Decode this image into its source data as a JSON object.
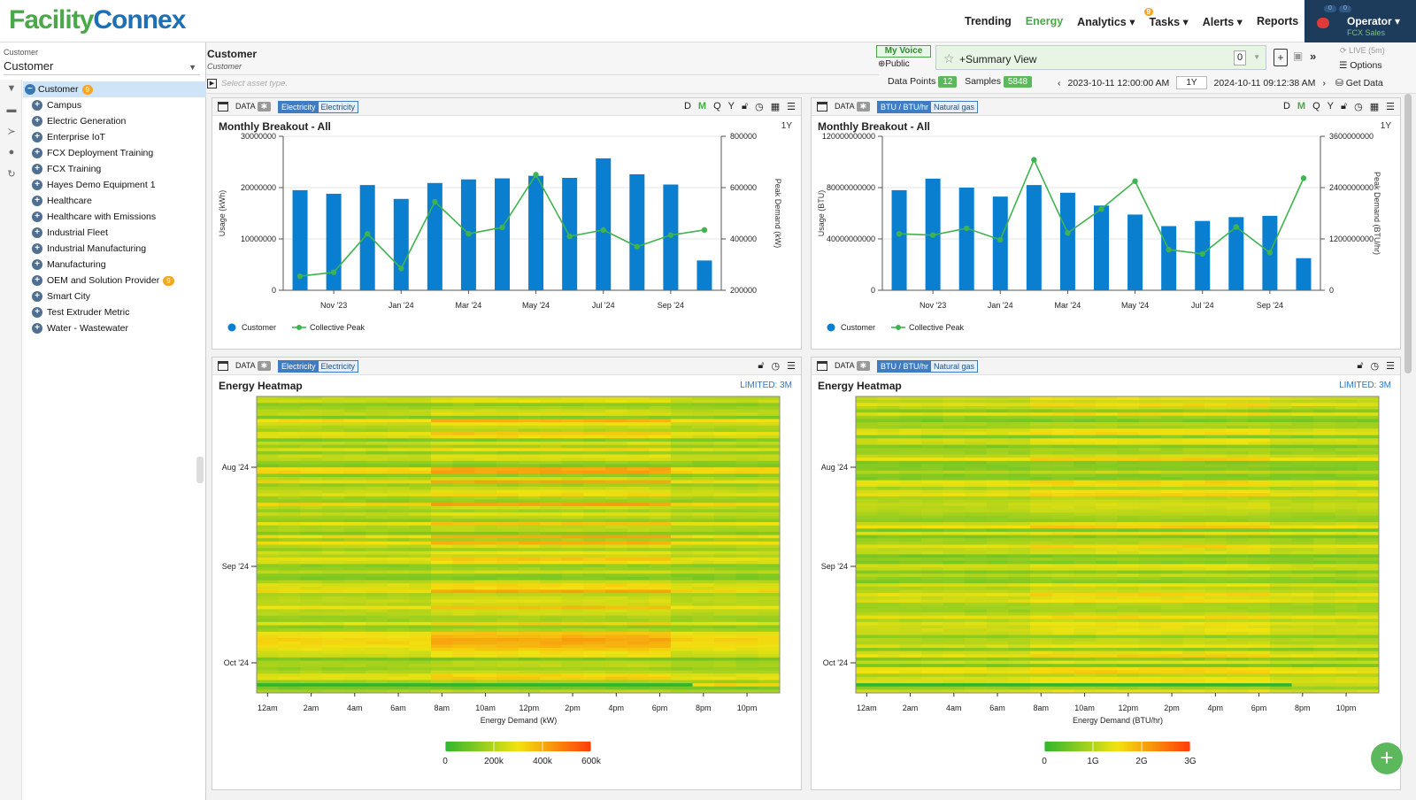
{
  "app": {
    "logo_part1": "Facility",
    "logo_part2": "Connex",
    "nav": [
      {
        "label": "Trending",
        "active": false
      },
      {
        "label": "Energy",
        "active": true
      },
      {
        "label": "Analytics ▾",
        "active": false
      },
      {
        "label": "Tasks ▾",
        "active": false,
        "badge": "9"
      },
      {
        "label": "Alerts ▾",
        "active": false
      },
      {
        "label": "Reports",
        "active": false
      }
    ],
    "user": {
      "name": "Operator ▾",
      "role": "FCX Sales",
      "mini_badges": [
        "0",
        "0"
      ]
    }
  },
  "sidebar": {
    "label": "Customer",
    "selected": "Customer",
    "tree": [
      {
        "label": "Customer",
        "root": true,
        "badge": "9"
      },
      {
        "label": "Campus"
      },
      {
        "label": "Electric Generation"
      },
      {
        "label": "Enterprise IoT"
      },
      {
        "label": "FCX Deployment Training"
      },
      {
        "label": "FCX Training"
      },
      {
        "label": "Hayes Demo Equipment 1"
      },
      {
        "label": "Healthcare"
      },
      {
        "label": "Healthcare with Emissions"
      },
      {
        "label": "Industrial Fleet"
      },
      {
        "label": "Industrial Manufacturing"
      },
      {
        "label": "Manufacturing"
      },
      {
        "label": "OEM and Solution Provider",
        "badge": "9"
      },
      {
        "label": "Smart City"
      },
      {
        "label": "Test Extruder Metric"
      },
      {
        "label": "Water - Wastewater"
      }
    ]
  },
  "workspace": {
    "title": "Customer",
    "subtitle": "Customer",
    "asset_placeholder": "Select asset type.",
    "my_voice": "My Voice",
    "public": "Public",
    "view_name": "+Summary View",
    "view_count": "0",
    "live": "LIVE (5m)",
    "options": "Options",
    "get_data": "Get Data",
    "data_points_label": "Data Points",
    "data_points": "12",
    "samples_label": "Samples",
    "samples": "5848",
    "start": "2023-10-11 12:00:00 AM",
    "range": "1Y",
    "end": "2024-10-11 09:12:38 AM"
  },
  "panels": {
    "data_label": "DATA",
    "bar_icons": [
      "D",
      "M",
      "Q",
      "Y"
    ],
    "elec_tag": [
      "Electricity",
      "Electricity"
    ],
    "gas_tag": [
      "BTU / BTU/hr",
      "Natural gas"
    ],
    "breakout_title": "Monthly Breakout - All",
    "breakout_range": "1Y",
    "heatmap_title": "Energy Heatmap",
    "heatmap_limited": "LIMITED: 3M",
    "legend_series1": "Customer",
    "legend_series2": "Collective Peak"
  },
  "chart_data": [
    {
      "type": "bar",
      "title": "Monthly Breakout - All",
      "categories": [
        "Oct '23",
        "Nov '23",
        "Dec '23",
        "Jan '24",
        "Feb '24",
        "Mar '24",
        "Apr '24",
        "May '24",
        "Jun '24",
        "Jul '24",
        "Aug '24",
        "Sep '24",
        "Oct '24"
      ],
      "xticks": [
        "Nov '23",
        "Jan '24",
        "Mar '24",
        "May '24",
        "Jul '24",
        "Sep '24"
      ],
      "ylabel": "Usage (kWh)",
      "y2label": "Peak Demand (kW)",
      "ylim": [
        0,
        30000000
      ],
      "yticks": [
        "0",
        "10000000",
        "20000000",
        "30000000"
      ],
      "y2lim": [
        200000,
        800000
      ],
      "y2ticks": [
        "200000",
        "400000",
        "600000",
        "800000"
      ],
      "series": [
        {
          "name": "Customer",
          "type": "bar",
          "color": "#0a7ecf",
          "values": [
            19500000,
            18800000,
            20500000,
            17800000,
            20900000,
            21600000,
            21800000,
            22300000,
            21900000,
            25700000,
            22600000,
            20600000,
            5800000
          ]
        },
        {
          "name": "Collective Peak",
          "type": "line",
          "color": "#3fb34f",
          "values": [
            255000,
            270000,
            420000,
            285000,
            545000,
            420000,
            445000,
            650000,
            410000,
            435000,
            370000,
            415000,
            435000
          ]
        }
      ],
      "legend": "bottom-left"
    },
    {
      "type": "bar",
      "title": "Monthly Breakout - All",
      "categories": [
        "Oct '23",
        "Nov '23",
        "Dec '23",
        "Jan '24",
        "Feb '24",
        "Mar '24",
        "Apr '24",
        "May '24",
        "Jun '24",
        "Jul '24",
        "Aug '24",
        "Sep '24",
        "Oct '24"
      ],
      "xticks": [
        "Nov '23",
        "Jan '24",
        "Mar '24",
        "May '24",
        "Jul '24",
        "Sep '24"
      ],
      "ylabel": "Usage (BTU)",
      "y2label": "Peak Demand (BTU/hr)",
      "ylim": [
        0,
        120000000000
      ],
      "yticks": [
        "0",
        "40000000000",
        "80000000000",
        "120000000000"
      ],
      "y2lim": [
        0,
        3600000000
      ],
      "y2ticks": [
        "0",
        "1200000000",
        "2400000000",
        "3600000000"
      ],
      "series": [
        {
          "name": "Customer",
          "type": "bar",
          "color": "#0a7ecf",
          "values": [
            78000000000,
            87000000000,
            80000000000,
            73000000000,
            82000000000,
            76000000000,
            66000000000,
            59000000000,
            50000000000,
            54000000000,
            57000000000,
            58000000000,
            25000000000
          ]
        },
        {
          "name": "Collective Peak",
          "type": "line",
          "color": "#3fb34f",
          "values": [
            1320000000,
            1290000000,
            1450000000,
            1180000000,
            3050000000,
            1340000000,
            1900000000,
            2550000000,
            950000000,
            850000000,
            1480000000,
            880000000,
            2620000000
          ]
        }
      ],
      "legend": "bottom-left"
    },
    {
      "type": "heatmap",
      "title": "Energy Heatmap",
      "xlabel": "Energy Demand (kW)",
      "xticks": [
        "12am",
        "2am",
        "4am",
        "6am",
        "8am",
        "10am",
        "12pm",
        "2pm",
        "4pm",
        "6pm",
        "8pm",
        "10pm"
      ],
      "yticks": [
        "Aug '24",
        "Sep '24",
        "Oct '24"
      ],
      "colorbar_ticks": [
        "0",
        "200k",
        "400k",
        "600k"
      ],
      "colorbar_max": 600000,
      "colors": [
        "#2fb62f",
        "#f2e310",
        "#ff3b0a"
      ]
    },
    {
      "type": "heatmap",
      "title": "Energy Heatmap",
      "xlabel": "Energy Demand (BTU/hr)",
      "xticks": [
        "12am",
        "2am",
        "4am",
        "6am",
        "8am",
        "10am",
        "12pm",
        "2pm",
        "4pm",
        "6pm",
        "8pm",
        "10pm"
      ],
      "yticks": [
        "Aug '24",
        "Sep '24",
        "Oct '24"
      ],
      "colorbar_ticks": [
        "0",
        "1G",
        "2G",
        "3G"
      ],
      "colorbar_max": 3000000000,
      "colors": [
        "#2fb62f",
        "#f2e310",
        "#ff3b0a"
      ]
    }
  ]
}
